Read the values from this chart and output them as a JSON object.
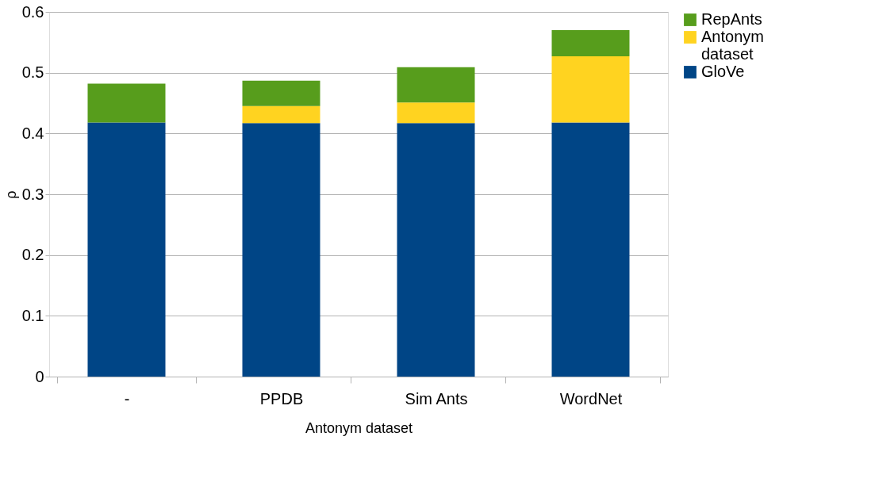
{
  "chart_data": {
    "type": "bar",
    "stacked": true,
    "xlabel": "Antonym dataset",
    "ylabel": "ρ",
    "categories": [
      "-",
      "PPDB",
      "Sim Ants",
      "WordNet"
    ],
    "series": [
      {
        "name": "GloVe",
        "color": "#004586",
        "values": [
          0.418,
          0.417,
          0.417,
          0.418
        ]
      },
      {
        "name": "Antonym dataset",
        "color": "#ffd320",
        "values": [
          null,
          0.028,
          0.034,
          0.109
        ]
      },
      {
        "name": "RepAnts",
        "color": "#579d1c",
        "values": [
          0.064,
          0.042,
          0.058,
          0.043
        ]
      }
    ],
    "ylim": [
      0,
      0.6
    ],
    "yticks": [
      0,
      0.1,
      0.2,
      0.3,
      0.4,
      0.5,
      0.6
    ],
    "grid": "y",
    "legend": "right"
  }
}
